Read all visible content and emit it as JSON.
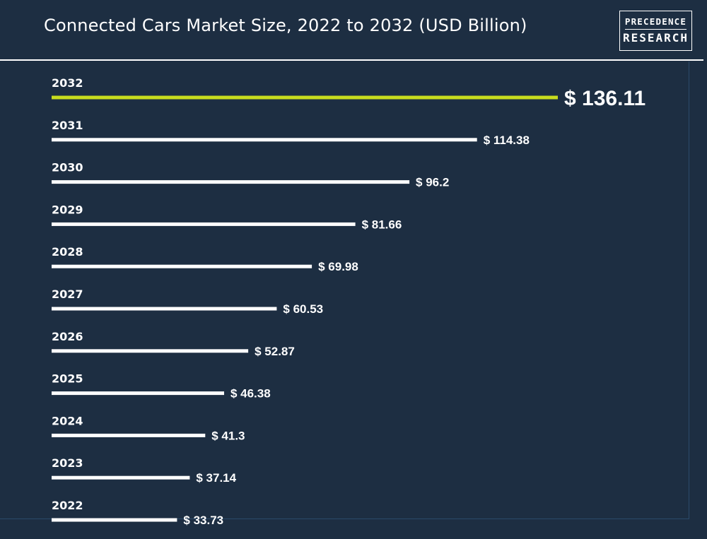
{
  "header": {
    "title": "Connected Cars Market Size, 2022 to 2032 (USD Billion)",
    "logo_line1": "PRECEDENCE",
    "logo_line2": "RESEARCH"
  },
  "colors": {
    "background": "#1d2e42",
    "bar": "#ffffff",
    "highlight": "#c8dc1e",
    "text": "#ffffff"
  },
  "chart_data": {
    "type": "bar",
    "orientation": "horizontal",
    "title": "Connected Cars Market Size, 2022 to 2032 (USD Billion)",
    "categories": [
      "2032",
      "2031",
      "2030",
      "2029",
      "2028",
      "2027",
      "2026",
      "2025",
      "2024",
      "2023",
      "2022"
    ],
    "values": [
      136.11,
      114.38,
      96.2,
      81.66,
      69.98,
      60.53,
      52.87,
      46.38,
      41.3,
      37.14,
      33.73
    ],
    "value_labels": [
      "$ 136.11",
      "$ 114.38",
      "$ 96.2",
      "$ 81.66",
      "$ 69.98",
      "$ 60.53",
      "$ 52.87",
      "$ 46.38",
      "$ 41.3",
      "$ 37.14",
      "$ 33.73"
    ],
    "highlight_category": "2032",
    "unit": "USD Billion",
    "grid": false,
    "legend": "none"
  }
}
